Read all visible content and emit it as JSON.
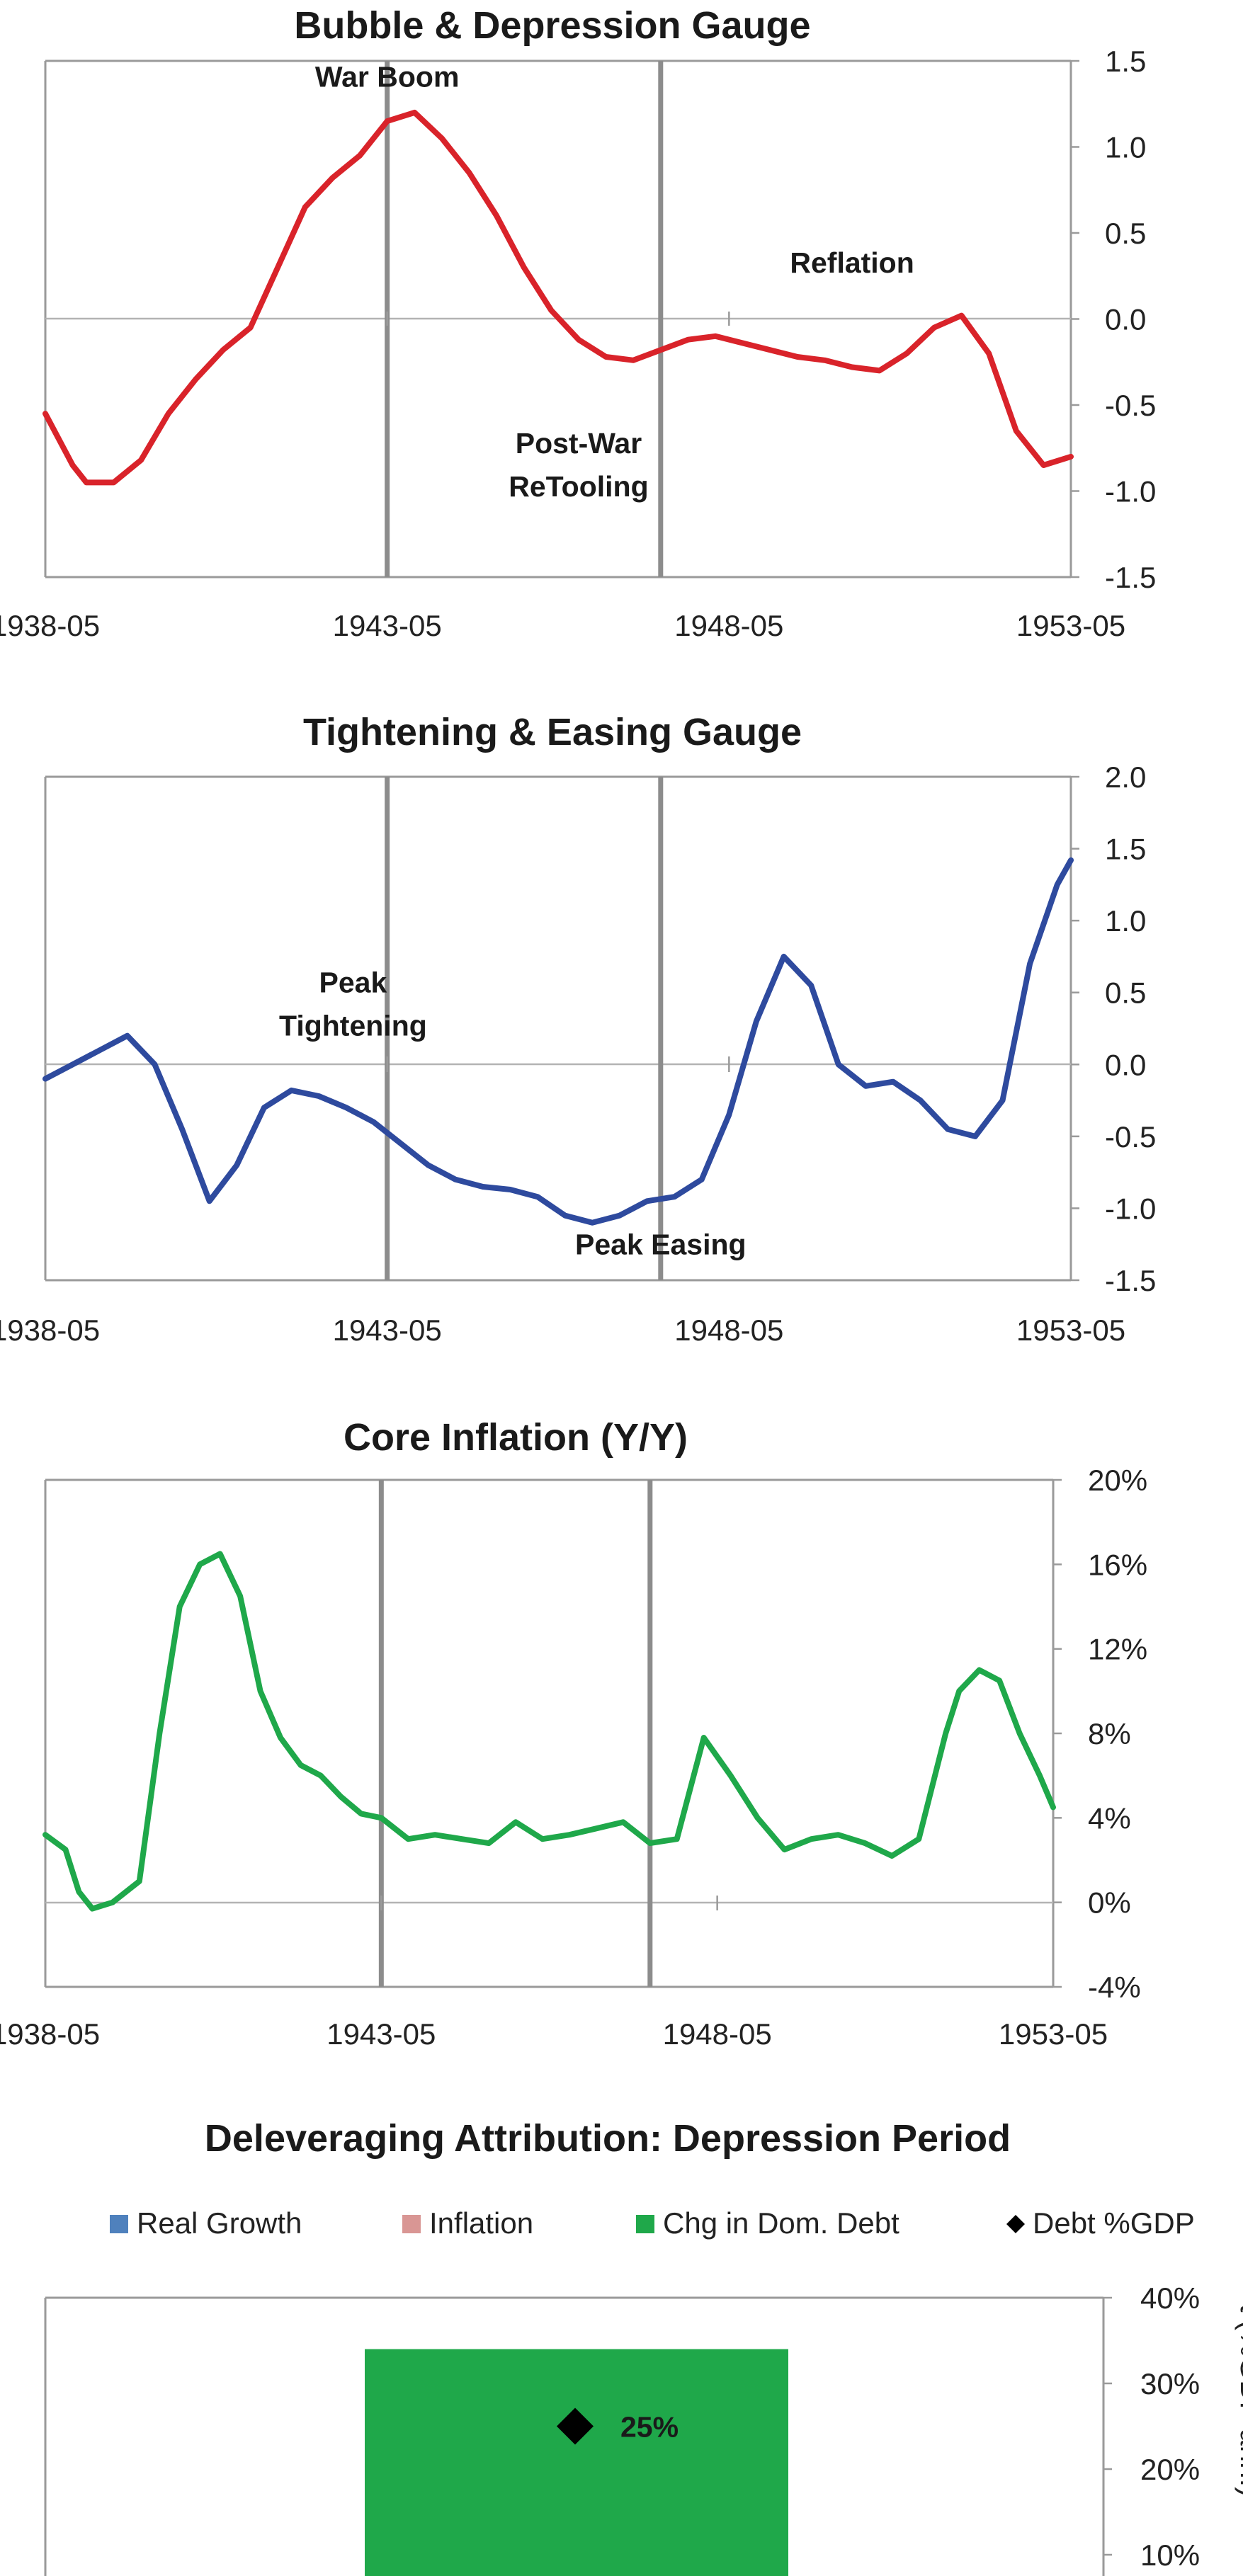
{
  "chart_data": [
    {
      "type": "line",
      "title": "Bubble & Depression Gauge",
      "x_start": "1938-05",
      "x_end": "1953-05",
      "xticks": [
        "1938-05",
        "1943-05",
        "1948-05",
        "1953-05"
      ],
      "ylim": [
        -1.5,
        1.5
      ],
      "yticks": [
        "1.5",
        "1.0",
        "0.5",
        "0.0",
        "-0.5",
        "-1.0",
        "-1.5"
      ],
      "series": [
        {
          "color": "#d9232a",
          "x": [
            1938.4,
            1938.8,
            1939.0,
            1939.4,
            1939.8,
            1940.2,
            1940.6,
            1941.0,
            1941.4,
            1941.8,
            1942.2,
            1942.6,
            1943.0,
            1943.4,
            1943.8,
            1944.2,
            1944.6,
            1945.0,
            1945.4,
            1945.8,
            1946.2,
            1946.6,
            1947.0,
            1947.4,
            1947.8,
            1948.2,
            1948.6,
            1949.0,
            1949.4,
            1949.8,
            1950.2,
            1950.6,
            1951.0,
            1951.4,
            1951.8,
            1952.2,
            1952.6,
            1953.0,
            1953.4
          ],
          "y": [
            -0.55,
            -0.85,
            -0.95,
            -0.95,
            -0.82,
            -0.55,
            -0.35,
            -0.18,
            -0.05,
            0.3,
            0.65,
            0.82,
            0.95,
            1.15,
            1.2,
            1.05,
            0.85,
            0.6,
            0.3,
            0.05,
            -0.12,
            -0.22,
            -0.24,
            -0.18,
            -0.12,
            -0.1,
            -0.14,
            -0.18,
            -0.22,
            -0.24,
            -0.28,
            -0.3,
            -0.2,
            -0.05,
            0.02,
            -0.2,
            -0.65,
            -0.85,
            -0.8
          ]
        }
      ],
      "vlines": [
        1943.4,
        1947.4
      ],
      "annotations": [
        {
          "text": "War Boom",
          "x": 1943.4,
          "y": 1.35
        },
        {
          "text": "Post-War",
          "x": 1946.2,
          "y": -0.78
        },
        {
          "text": "ReTooling",
          "x": 1946.2,
          "y": -1.03
        },
        {
          "text": "Reflation",
          "x": 1950.2,
          "y": 0.27
        }
      ]
    },
    {
      "type": "line",
      "title": "Tightening & Easing Gauge",
      "x_start": "1938-05",
      "x_end": "1953-05",
      "xticks": [
        "1938-05",
        "1943-05",
        "1948-05",
        "1953-05"
      ],
      "ylim": [
        -1.5,
        2.0
      ],
      "yticks": [
        "2.0",
        "1.5",
        "1.0",
        "0.5",
        "0.0",
        "-0.5",
        "-1.0",
        "-1.5"
      ],
      "series": [
        {
          "color": "#2e4a9e",
          "x": [
            1938.4,
            1938.8,
            1939.2,
            1939.6,
            1940.0,
            1940.4,
            1940.8,
            1941.2,
            1941.6,
            1942.0,
            1942.4,
            1942.8,
            1943.2,
            1943.6,
            1944.0,
            1944.4,
            1944.8,
            1945.2,
            1945.6,
            1946.0,
            1946.4,
            1946.8,
            1947.2,
            1947.6,
            1948.0,
            1948.4,
            1948.8,
            1949.2,
            1949.6,
            1950.0,
            1950.4,
            1950.8,
            1951.2,
            1951.6,
            1952.0,
            1952.4,
            1952.8,
            1953.2,
            1953.4
          ],
          "y": [
            -0.1,
            0.0,
            0.1,
            0.2,
            0.0,
            -0.45,
            -0.95,
            -0.7,
            -0.3,
            -0.18,
            -0.22,
            -0.3,
            -0.4,
            -0.55,
            -0.7,
            -0.8,
            -0.85,
            -0.87,
            -0.92,
            -1.05,
            -1.1,
            -1.05,
            -0.95,
            -0.92,
            -0.8,
            -0.35,
            0.3,
            0.75,
            0.55,
            0.0,
            -0.15,
            -0.12,
            -0.25,
            -0.45,
            -0.5,
            -0.25,
            0.7,
            1.25,
            1.42
          ]
        }
      ],
      "vlines": [
        1943.4,
        1947.4
      ],
      "annotations": [
        {
          "text": "Peak",
          "x": 1942.9,
          "y": 0.5
        },
        {
          "text": "Tightening",
          "x": 1942.9,
          "y": 0.2
        },
        {
          "text": "Peak Easing",
          "x": 1947.4,
          "y": -1.32
        }
      ]
    },
    {
      "type": "line",
      "title": "Core Inflation (Y/Y)",
      "x_start": "1938-05",
      "x_end": "1953-05",
      "xticks": [
        "1938-05",
        "1943-05",
        "1948-05",
        "1953-05"
      ],
      "ylim": [
        -4,
        20
      ],
      "yticks": [
        "20%",
        "16%",
        "12%",
        "8%",
        "4%",
        "0%",
        "-4%"
      ],
      "series": [
        {
          "color": "#1fa84a",
          "x": [
            1938.4,
            1938.7,
            1938.9,
            1939.1,
            1939.4,
            1939.8,
            1940.1,
            1940.4,
            1940.7,
            1941.0,
            1941.3,
            1941.6,
            1941.9,
            1942.2,
            1942.5,
            1942.8,
            1943.1,
            1943.4,
            1943.8,
            1944.2,
            1944.6,
            1945.0,
            1945.4,
            1945.8,
            1946.2,
            1946.6,
            1947.0,
            1947.4,
            1947.8,
            1948.2,
            1948.6,
            1949.0,
            1949.4,
            1949.8,
            1950.2,
            1950.6,
            1951.0,
            1951.4,
            1951.8,
            1952.0,
            1952.3,
            1952.6,
            1952.9,
            1953.2,
            1953.4
          ],
          "y": [
            3.2,
            2.5,
            0.5,
            -0.3,
            0.0,
            1.0,
            8.0,
            14.0,
            16.0,
            16.5,
            14.5,
            10.0,
            7.8,
            6.5,
            6.0,
            5.0,
            4.2,
            4.0,
            3.0,
            3.2,
            3.0,
            2.8,
            3.8,
            3.0,
            3.2,
            3.5,
            3.8,
            2.8,
            3.0,
            7.8,
            6.0,
            4.0,
            2.5,
            3.0,
            3.2,
            2.8,
            2.2,
            3.0,
            8.0,
            10.0,
            11.0,
            10.5,
            8.0,
            6.0,
            4.5
          ]
        }
      ],
      "vlines": [
        1943.4,
        1947.4
      ],
      "annotations": []
    },
    {
      "type": "bar",
      "title": "Deleveraging Attribution: Depression Period",
      "legend": [
        {
          "label": "Real Growth",
          "color": "#4f81bd",
          "marker": "square"
        },
        {
          "label": "Inflation",
          "color": "#d99694",
          "marker": "square"
        },
        {
          "label": "Chg in Dom. Debt",
          "color": "#1fa84a",
          "marker": "square"
        },
        {
          "label": "Debt %GDP",
          "color": "#000000",
          "marker": "diamond"
        }
      ],
      "legend_position": "top",
      "ylim_visible": [
        10,
        40
      ],
      "yticks": [
        "40%",
        "30%",
        "20%",
        "10%"
      ],
      "bars": [
        {
          "series": "Chg in Dom. Debt",
          "top": 34,
          "color": "#1fa84a"
        }
      ],
      "points": [
        {
          "series": "Debt %GDP",
          "value": 25,
          "label": "25%"
        }
      ],
      "ylabel": "t (%GDP ann.)"
    }
  ]
}
